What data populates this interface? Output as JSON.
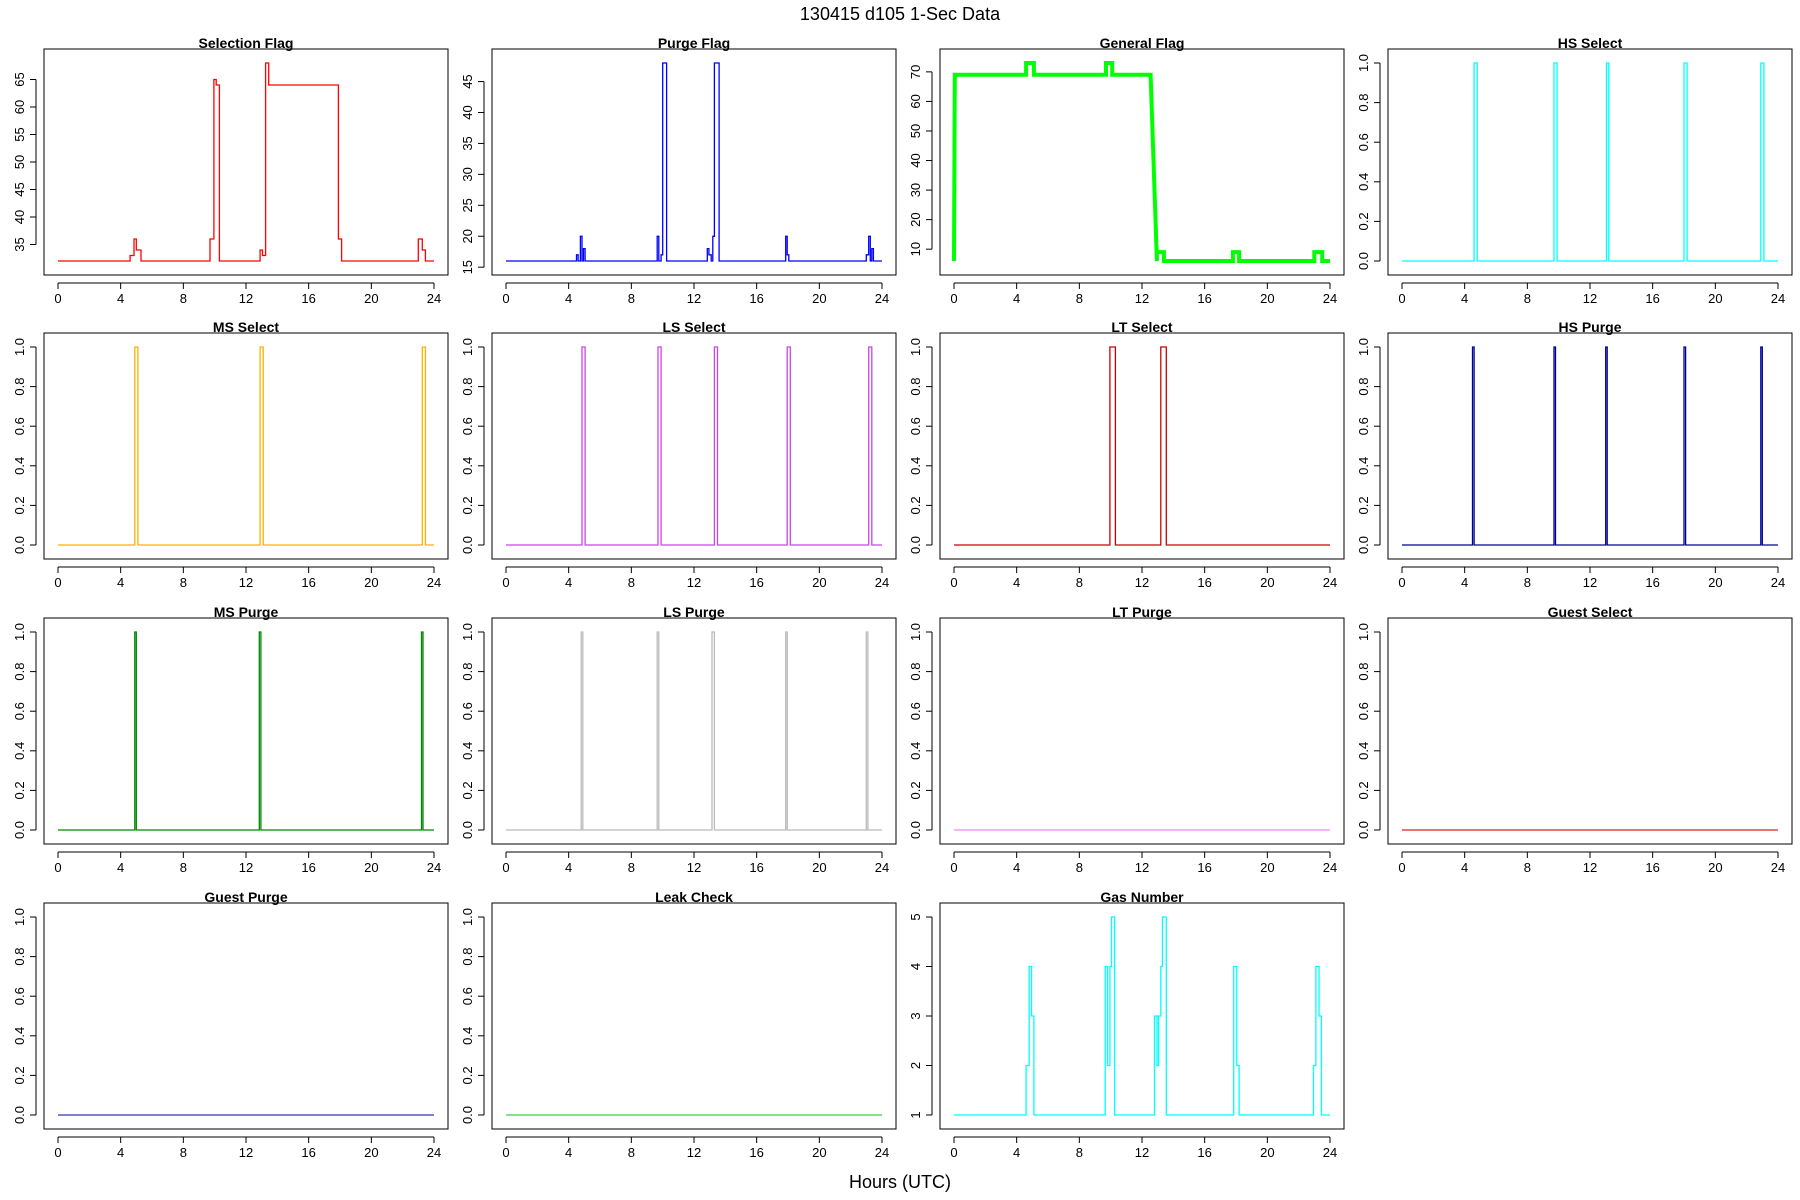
{
  "figure": {
    "title": "130415   d105   1-Sec Data",
    "xlabel": "Hours (UTC)"
  },
  "chart_data": [
    {
      "type": "line",
      "title": "Selection Flag",
      "color": "#ff0000",
      "xlim": [
        0,
        24
      ],
      "xticks": [
        0,
        4,
        8,
        12,
        16,
        20,
        24
      ],
      "ylim": [
        32,
        68
      ],
      "yticks": [
        35,
        40,
        45,
        50,
        55,
        60,
        65
      ],
      "x": [
        0,
        4.6,
        4.6,
        4.85,
        4.85,
        5.0,
        5.0,
        5.3,
        5.3,
        9.7,
        9.7,
        9.95,
        9.95,
        10.1,
        10.1,
        10.3,
        10.3,
        12.9,
        12.9,
        13.05,
        13.05,
        13.25,
        13.25,
        13.45,
        13.45,
        17.9,
        17.9,
        18.1,
        18.1,
        23.0,
        23.0,
        23.25,
        23.25,
        23.45,
        23.45,
        24
      ],
      "y": [
        32,
        32,
        33,
        33,
        36,
        36,
        34,
        34,
        32,
        32,
        36,
        36,
        65,
        65,
        64,
        64,
        32,
        32,
        34,
        34,
        33,
        33,
        68,
        68,
        64,
        64,
        36,
        36,
        32,
        32,
        36,
        36,
        34,
        34,
        32,
        32
      ]
    },
    {
      "type": "line",
      "title": "Purge Flag",
      "color": "#0000ff",
      "xlim": [
        0,
        24
      ],
      "xticks": [
        0,
        4,
        8,
        12,
        16,
        20,
        24
      ],
      "ylim": [
        16,
        48
      ],
      "yticks": [
        15,
        20,
        25,
        30,
        35,
        40,
        45
      ],
      "x": [
        0,
        4.5,
        4.5,
        4.6,
        4.6,
        4.75,
        4.75,
        4.85,
        4.85,
        4.95,
        4.95,
        5.05,
        5.05,
        9.65,
        9.65,
        9.75,
        9.75,
        9.9,
        9.9,
        10.0,
        10.0,
        10.25,
        10.25,
        12.85,
        12.85,
        12.95,
        12.95,
        13.1,
        13.1,
        13.2,
        13.2,
        13.3,
        13.3,
        13.6,
        13.6,
        17.85,
        17.85,
        17.95,
        17.95,
        18.05,
        18.05,
        23.0,
        23.0,
        23.15,
        23.15,
        23.25,
        23.25,
        23.35,
        23.35,
        23.45,
        23.45,
        24
      ],
      "y": [
        16,
        16,
        17,
        17,
        16,
        16,
        20,
        20,
        16,
        16,
        18,
        18,
        16,
        16,
        20,
        20,
        16,
        16,
        17,
        17,
        48,
        48,
        16,
        16,
        18,
        18,
        17,
        17,
        16,
        16,
        20,
        20,
        48,
        48,
        16,
        16,
        20,
        20,
        17,
        17,
        16,
        16,
        17,
        17,
        20,
        20,
        16,
        16,
        18,
        18,
        16,
        16
      ]
    },
    {
      "type": "line",
      "title": "General Flag",
      "color": "#00ff00",
      "linewidth": 4,
      "xlim": [
        0,
        24
      ],
      "xticks": [
        0,
        4,
        8,
        12,
        16,
        20,
        24
      ],
      "ylim": [
        6,
        73
      ],
      "yticks": [
        10,
        20,
        30,
        40,
        50,
        60,
        70
      ],
      "x": [
        0,
        0.05,
        4.6,
        4.6,
        5.1,
        5.1,
        9.7,
        9.7,
        10.1,
        10.1,
        12.55,
        12.95,
        12.95,
        13.4,
        13.4,
        17.8,
        17.8,
        18.2,
        18.2,
        23.0,
        23.0,
        23.5,
        23.5,
        24
      ],
      "y": [
        6,
        69,
        69,
        73,
        73,
        69,
        69,
        73,
        73,
        69,
        69,
        6,
        9,
        9,
        6,
        6,
        9,
        9,
        6,
        6,
        9,
        9,
        6,
        6
      ]
    },
    {
      "type": "line",
      "title": "HS Select",
      "color": "#00ffff",
      "xlim": [
        0,
        24
      ],
      "xticks": [
        0,
        4,
        8,
        12,
        16,
        20,
        24
      ],
      "ylim": [
        0,
        1
      ],
      "yticks": [
        0.0,
        0.2,
        0.4,
        0.6,
        0.8,
        1.0
      ],
      "x": [
        0,
        4.6,
        4.6,
        4.8,
        4.8,
        9.7,
        9.7,
        9.9,
        9.9,
        13.05,
        13.05,
        13.2,
        13.2,
        18.0,
        18.0,
        18.2,
        18.2,
        22.9,
        22.9,
        23.1,
        23.1,
        24
      ],
      "y": [
        0,
        0,
        1,
        1,
        0,
        0,
        1,
        1,
        0,
        0,
        1,
        1,
        0,
        0,
        1,
        1,
        0,
        0,
        1,
        1,
        0,
        0
      ]
    },
    {
      "type": "line",
      "title": "MS Select",
      "color": "#ffb000",
      "xlim": [
        0,
        24
      ],
      "xticks": [
        0,
        4,
        8,
        12,
        16,
        20,
        24
      ],
      "ylim": [
        0,
        1
      ],
      "yticks": [
        0.0,
        0.2,
        0.4,
        0.6,
        0.8,
        1.0
      ],
      "x": [
        0,
        4.9,
        4.9,
        5.1,
        5.1,
        12.9,
        12.9,
        13.1,
        13.1,
        23.25,
        23.25,
        23.45,
        23.45,
        24
      ],
      "y": [
        0,
        0,
        1,
        1,
        0,
        0,
        1,
        1,
        0,
        0,
        1,
        1,
        0,
        0
      ]
    },
    {
      "type": "line",
      "title": "LS Select",
      "color": "#cc44ee",
      "xlim": [
        0,
        24
      ],
      "xticks": [
        0,
        4,
        8,
        12,
        16,
        20,
        24
      ],
      "ylim": [
        0,
        1
      ],
      "yticks": [
        0.0,
        0.2,
        0.4,
        0.6,
        0.8,
        1.0
      ],
      "x": [
        0,
        4.85,
        4.85,
        5.05,
        5.05,
        9.7,
        9.7,
        9.9,
        9.9,
        13.3,
        13.3,
        13.5,
        13.5,
        17.95,
        17.95,
        18.15,
        18.15,
        23.15,
        23.15,
        23.35,
        23.35,
        24
      ],
      "y": [
        0,
        0,
        1,
        1,
        0,
        0,
        1,
        1,
        0,
        0,
        1,
        1,
        0,
        0,
        1,
        1,
        0,
        0,
        1,
        1,
        0,
        0
      ]
    },
    {
      "type": "line",
      "title": "LT Select",
      "color": "#cc0000",
      "xlim": [
        0,
        24
      ],
      "xticks": [
        0,
        4,
        8,
        12,
        16,
        20,
        24
      ],
      "ylim": [
        0,
        1
      ],
      "yticks": [
        0.0,
        0.2,
        0.4,
        0.6,
        0.8,
        1.0
      ],
      "x": [
        0,
        9.95,
        9.95,
        10.3,
        10.3,
        13.2,
        13.2,
        13.55,
        13.55,
        24
      ],
      "y": [
        0,
        0,
        1,
        1,
        0,
        0,
        1,
        1,
        0,
        0
      ]
    },
    {
      "type": "line",
      "title": "HS Purge",
      "color": "#000099",
      "xlim": [
        0,
        24
      ],
      "xticks": [
        0,
        4,
        8,
        12,
        16,
        20,
        24
      ],
      "ylim": [
        0,
        1
      ],
      "yticks": [
        0.0,
        0.2,
        0.4,
        0.6,
        0.8,
        1.0
      ],
      "x": [
        0,
        4.5,
        4.5,
        4.6,
        4.6,
        9.7,
        9.7,
        9.8,
        9.8,
        13.0,
        13.0,
        13.1,
        13.1,
        18.0,
        18.0,
        18.1,
        18.1,
        22.9,
        22.9,
        23.0,
        23.0,
        24
      ],
      "y": [
        0,
        0,
        1,
        1,
        0,
        0,
        1,
        1,
        0,
        0,
        1,
        1,
        0,
        0,
        1,
        1,
        0,
        0,
        1,
        1,
        0,
        0
      ]
    },
    {
      "type": "line",
      "title": "MS Purge",
      "color": "#008800",
      "xlim": [
        0,
        24
      ],
      "xticks": [
        0,
        4,
        8,
        12,
        16,
        20,
        24
      ],
      "ylim": [
        0,
        1
      ],
      "yticks": [
        0.0,
        0.2,
        0.4,
        0.6,
        0.8,
        1.0
      ],
      "x": [
        0,
        4.9,
        4.9,
        5.0,
        5.0,
        12.85,
        12.85,
        12.95,
        12.95,
        23.2,
        23.2,
        23.3,
        23.3,
        24
      ],
      "y": [
        0,
        0,
        1,
        1,
        0,
        0,
        1,
        1,
        0,
        0,
        1,
        1,
        0,
        0
      ]
    },
    {
      "type": "line",
      "title": "LS Purge",
      "color": "#bbbbbb",
      "xlim": [
        0,
        24
      ],
      "xticks": [
        0,
        4,
        8,
        12,
        16,
        20,
        24
      ],
      "ylim": [
        0,
        1
      ],
      "yticks": [
        0.0,
        0.2,
        0.4,
        0.6,
        0.8,
        1.0
      ],
      "x": [
        0,
        4.8,
        4.8,
        4.9,
        4.9,
        9.65,
        9.65,
        9.75,
        9.75,
        13.15,
        13.15,
        13.3,
        13.3,
        17.85,
        17.85,
        17.95,
        17.95,
        23.0,
        23.0,
        23.1,
        23.1,
        24
      ],
      "y": [
        0,
        0,
        1,
        1,
        0,
        0,
        1,
        1,
        0,
        0,
        1,
        1,
        0,
        0,
        1,
        1,
        0,
        0,
        1,
        1,
        0,
        0
      ]
    },
    {
      "type": "line",
      "title": "LT Purge",
      "color": "#ee88ee",
      "xlim": [
        0,
        24
      ],
      "xticks": [
        0,
        4,
        8,
        12,
        16,
        20,
        24
      ],
      "ylim": [
        0,
        1
      ],
      "yticks": [
        0.0,
        0.2,
        0.4,
        0.6,
        0.8,
        1.0
      ],
      "x": [
        0,
        24
      ],
      "y": [
        0,
        0
      ]
    },
    {
      "type": "line",
      "title": "Guest Select",
      "color": "#dd2222",
      "xlim": [
        0,
        24
      ],
      "xticks": [
        0,
        4,
        8,
        12,
        16,
        20,
        24
      ],
      "ylim": [
        0,
        1
      ],
      "yticks": [
        0.0,
        0.2,
        0.4,
        0.6,
        0.8,
        1.0
      ],
      "x": [
        0,
        24
      ],
      "y": [
        0,
        0
      ]
    },
    {
      "type": "line",
      "title": "Guest Purge",
      "color": "#3333aa",
      "xlim": [
        0,
        24
      ],
      "xticks": [
        0,
        4,
        8,
        12,
        16,
        20,
        24
      ],
      "ylim": [
        0,
        1
      ],
      "yticks": [
        0.0,
        0.2,
        0.4,
        0.6,
        0.8,
        1.0
      ],
      "x": [
        0,
        24
      ],
      "y": [
        0,
        0
      ]
    },
    {
      "type": "line",
      "title": "Leak Check",
      "color": "#44cc44",
      "xlim": [
        0,
        24
      ],
      "xticks": [
        0,
        4,
        8,
        12,
        16,
        20,
        24
      ],
      "ylim": [
        0,
        1
      ],
      "yticks": [
        0.0,
        0.2,
        0.4,
        0.6,
        0.8,
        1.0
      ],
      "x": [
        0,
        24
      ],
      "y": [
        0,
        0
      ]
    },
    {
      "type": "line",
      "title": "Gas Number",
      "color": "#00ffff",
      "xlim": [
        0,
        24
      ],
      "xticks": [
        0,
        4,
        8,
        12,
        16,
        20,
        24
      ],
      "ylim": [
        1,
        5
      ],
      "yticks": [
        1,
        2,
        3,
        4,
        5
      ],
      "x": [
        0,
        4.6,
        4.6,
        4.8,
        4.8,
        4.95,
        4.95,
        5.1,
        5.1,
        9.65,
        9.65,
        9.8,
        9.8,
        9.95,
        9.95,
        10.05,
        10.05,
        10.25,
        10.25,
        12.8,
        12.8,
        12.95,
        12.95,
        13.05,
        13.05,
        13.2,
        13.2,
        13.3,
        13.3,
        13.55,
        13.55,
        17.85,
        17.85,
        18.05,
        18.05,
        18.2,
        18.2,
        22.95,
        22.95,
        23.1,
        23.1,
        23.3,
        23.3,
        23.45,
        23.45,
        24
      ],
      "y": [
        1,
        1,
        2,
        2,
        4,
        4,
        3,
        3,
        1,
        1,
        4,
        4,
        2,
        2,
        4,
        4,
        5,
        5,
        1,
        1,
        3,
        3,
        2,
        2,
        3,
        3,
        4,
        4,
        5,
        5,
        1,
        1,
        4,
        4,
        2,
        2,
        1,
        1,
        2,
        2,
        4,
        4,
        3,
        3,
        1,
        1
      ]
    }
  ]
}
